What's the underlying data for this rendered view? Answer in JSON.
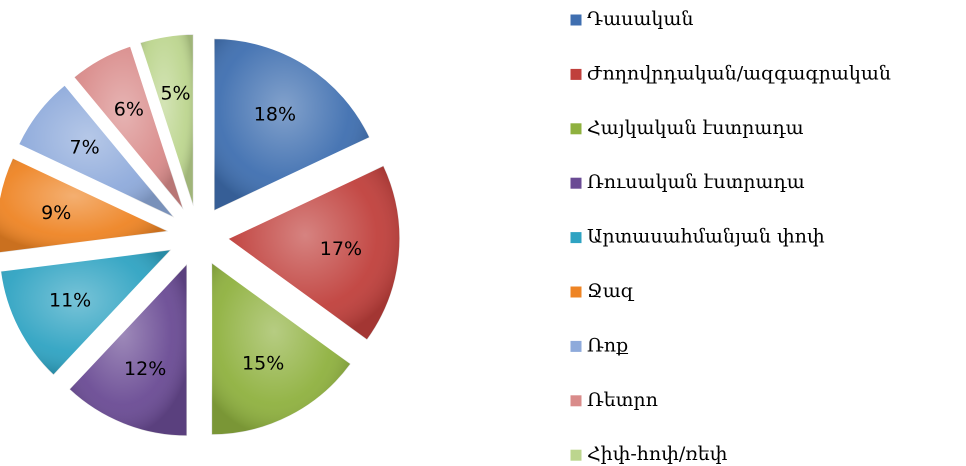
{
  "chart_data": {
    "type": "pie",
    "categories": [
      "Դասական",
      "Ժողովրդական/ազգագրական",
      "Հայկական էստրադա",
      "Ռուսական էստրադա",
      "Արտասահմանյան փոփ",
      "Ջազ",
      "Ռոք",
      "Ռետրո",
      "Հիփ-հոփ/ռեփ"
    ],
    "values": [
      18,
      17,
      15,
      12,
      11,
      9,
      7,
      6,
      5
    ],
    "value_labels": [
      "18%",
      "17%",
      "15%",
      "12%",
      "11%",
      "9%",
      "7%",
      "6%",
      "5%"
    ],
    "colors": [
      "#3f6fb0",
      "#c0403c",
      "#8fb13f",
      "#6a4b94",
      "#2fa3c2",
      "#ee8424",
      "#8eaadb",
      "#d98b8a",
      "#bcd58e"
    ],
    "legend": "right"
  }
}
